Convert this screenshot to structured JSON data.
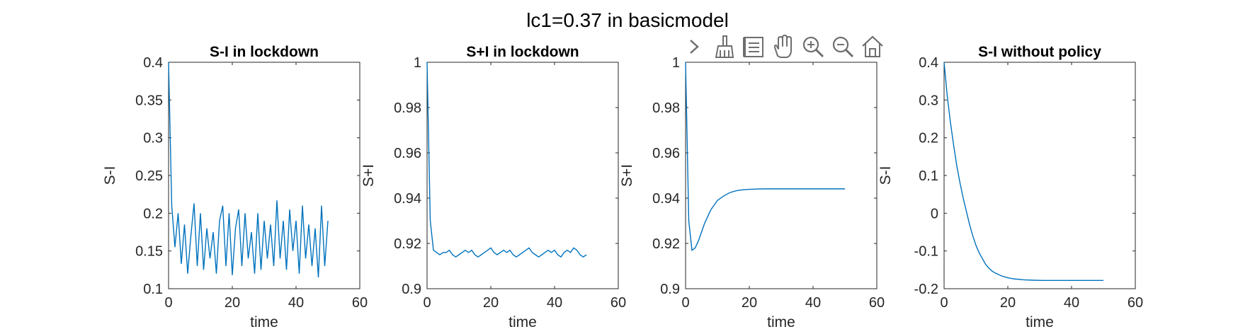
{
  "figure": {
    "title": "lc1=0.37 in basicmodel",
    "colors": {
      "line": "#0072BD",
      "axis": "#262626",
      "toolbar": "#6e6e6e"
    }
  },
  "toolbar": {
    "icons": [
      "chevron-right-icon",
      "brush-icon",
      "data-tips-icon",
      "pan-hand-icon",
      "zoom-in-icon",
      "zoom-out-icon",
      "home-icon"
    ]
  },
  "chart_data": [
    {
      "type": "line",
      "title": "S-I in lockdown",
      "xlabel": "time",
      "ylabel": "S-I",
      "xlim": [
        0,
        60
      ],
      "ylim": [
        0.1,
        0.4
      ],
      "xticks": [
        "0",
        "20",
        "40",
        "60"
      ],
      "yticks": [
        "0.1",
        "0.15",
        "0.2",
        "0.25",
        "0.3",
        "0.35",
        "0.4"
      ],
      "series": [
        {
          "x": [
            0,
            1,
            2,
            3,
            4,
            5,
            6,
            7,
            8,
            9,
            10,
            11,
            12,
            13,
            14,
            15,
            16,
            17,
            18,
            19,
            20,
            21,
            22,
            23,
            24,
            25,
            26,
            27,
            28,
            29,
            30,
            31,
            32,
            33,
            34,
            35,
            36,
            37,
            38,
            39,
            40,
            41,
            42,
            43,
            44,
            45,
            46,
            47,
            48,
            49,
            50
          ],
          "y": [
            0.4,
            0.21,
            0.155,
            0.2,
            0.133,
            0.185,
            0.12,
            0.17,
            0.213,
            0.13,
            0.2,
            0.125,
            0.18,
            0.14,
            0.175,
            0.12,
            0.19,
            0.21,
            0.13,
            0.2,
            0.118,
            0.18,
            0.205,
            0.13,
            0.2,
            0.14,
            0.175,
            0.12,
            0.2,
            0.125,
            0.19,
            0.14,
            0.185,
            0.13,
            0.217,
            0.14,
            0.19,
            0.125,
            0.205,
            0.15,
            0.19,
            0.12,
            0.21,
            0.14,
            0.185,
            0.13,
            0.18,
            0.115,
            0.21,
            0.13,
            0.19
          ]
        }
      ]
    },
    {
      "type": "line",
      "title": "S+I in lockdown",
      "xlabel": "time",
      "ylabel": "S+I",
      "xlim": [
        0,
        60
      ],
      "ylim": [
        0.9,
        1
      ],
      "xticks": [
        "0",
        "20",
        "40",
        "60"
      ],
      "yticks": [
        "0.9",
        "0.92",
        "0.94",
        "0.96",
        "0.98",
        "1"
      ],
      "series": [
        {
          "x": [
            0,
            1,
            2,
            3,
            4,
            5,
            6,
            7,
            8,
            9,
            10,
            11,
            12,
            13,
            14,
            15,
            16,
            17,
            18,
            19,
            20,
            21,
            22,
            23,
            24,
            25,
            26,
            27,
            28,
            29,
            30,
            31,
            32,
            33,
            34,
            35,
            36,
            37,
            38,
            39,
            40,
            41,
            42,
            43,
            44,
            45,
            46,
            47,
            48,
            49,
            50
          ],
          "y": [
            1.0,
            0.93,
            0.917,
            0.916,
            0.915,
            0.916,
            0.916,
            0.917,
            0.915,
            0.914,
            0.915,
            0.916,
            0.917,
            0.916,
            0.917,
            0.915,
            0.914,
            0.915,
            0.916,
            0.917,
            0.918,
            0.916,
            0.915,
            0.916,
            0.917,
            0.916,
            0.917,
            0.915,
            0.914,
            0.915,
            0.916,
            0.917,
            0.918,
            0.916,
            0.915,
            0.914,
            0.915,
            0.916,
            0.917,
            0.916,
            0.917,
            0.915,
            0.914,
            0.916,
            0.917,
            0.916,
            0.918,
            0.917,
            0.915,
            0.914,
            0.915
          ]
        }
      ]
    },
    {
      "type": "line",
      "title": "",
      "xlabel": "time",
      "ylabel": "S+I",
      "xlim": [
        0,
        60
      ],
      "ylim": [
        0.9,
        1
      ],
      "xticks": [
        "0",
        "20",
        "40",
        "60"
      ],
      "yticks": [
        "0.9",
        "0.92",
        "0.94",
        "0.96",
        "0.98",
        "1"
      ],
      "series": [
        {
          "x": [
            0,
            1,
            2,
            3,
            4,
            5,
            6,
            7,
            8,
            9,
            10,
            12,
            14,
            16,
            18,
            20,
            22,
            25,
            28,
            31,
            35,
            40,
            45,
            50
          ],
          "y": [
            1.0,
            0.93,
            0.917,
            0.918,
            0.921,
            0.925,
            0.929,
            0.932,
            0.935,
            0.937,
            0.939,
            0.941,
            0.9425,
            0.9433,
            0.9437,
            0.9439,
            0.944,
            0.9441,
            0.9441,
            0.9441,
            0.9441,
            0.9441,
            0.9441,
            0.9441
          ]
        }
      ]
    },
    {
      "type": "line",
      "title": "S-I without policy",
      "xlabel": "time",
      "ylabel": "S-I",
      "xlim": [
        0,
        60
      ],
      "ylim": [
        -0.2,
        0.4
      ],
      "xticks": [
        "0",
        "20",
        "40",
        "60"
      ],
      "yticks": [
        "-0.2",
        "-0.1",
        "0",
        "0.1",
        "0.2",
        "0.3",
        "0.4"
      ],
      "series": [
        {
          "x": [
            0,
            1,
            2,
            3,
            4,
            5,
            6,
            7,
            8,
            9,
            10,
            11,
            12,
            13,
            14,
            15,
            16,
            18,
            20,
            22,
            25,
            28,
            31,
            35,
            40,
            45,
            50
          ],
          "y": [
            0.4,
            0.31,
            0.24,
            0.18,
            0.125,
            0.08,
            0.04,
            0.005,
            -0.03,
            -0.06,
            -0.085,
            -0.105,
            -0.12,
            -0.135,
            -0.145,
            -0.153,
            -0.158,
            -0.166,
            -0.171,
            -0.174,
            -0.1765,
            -0.1775,
            -0.178,
            -0.178,
            -0.178,
            -0.178,
            -0.178
          ]
        }
      ]
    }
  ]
}
